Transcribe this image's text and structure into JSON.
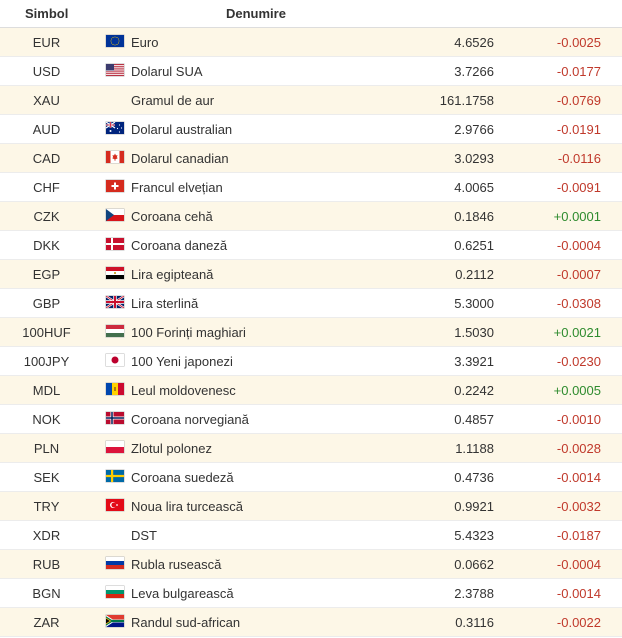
{
  "header": {
    "symbol": "Simbol",
    "name": "Denumire"
  },
  "rows": [
    {
      "symbol": "EUR",
      "flag": "eu-flag-icon",
      "name": "Euro",
      "value": "4.6526",
      "change": "-0.0025",
      "dir": "neg"
    },
    {
      "symbol": "USD",
      "flag": "us-flag-icon",
      "name": "Dolarul SUA",
      "value": "3.7266",
      "change": "-0.0177",
      "dir": "neg"
    },
    {
      "symbol": "XAU",
      "flag": "",
      "name": "Gramul de aur",
      "value": "161.1758",
      "change": "-0.0769",
      "dir": "neg"
    },
    {
      "symbol": "AUD",
      "flag": "au-flag-icon",
      "name": "Dolarul australian",
      "value": "2.9766",
      "change": "-0.0191",
      "dir": "neg"
    },
    {
      "symbol": "CAD",
      "flag": "ca-flag-icon",
      "name": "Dolarul canadian",
      "value": "3.0293",
      "change": "-0.0116",
      "dir": "neg"
    },
    {
      "symbol": "CHF",
      "flag": "ch-flag-icon",
      "name": "Francul elvețian",
      "value": "4.0065",
      "change": "-0.0091",
      "dir": "neg"
    },
    {
      "symbol": "CZK",
      "flag": "cz-flag-icon",
      "name": "Coroana cehă",
      "value": "0.1846",
      "change": "+0.0001",
      "dir": "pos"
    },
    {
      "symbol": "DKK",
      "flag": "dk-flag-icon",
      "name": "Coroana daneză",
      "value": "0.6251",
      "change": "-0.0004",
      "dir": "neg"
    },
    {
      "symbol": "EGP",
      "flag": "eg-flag-icon",
      "name": "Lira egipteană",
      "value": "0.2112",
      "change": "-0.0007",
      "dir": "neg"
    },
    {
      "symbol": "GBP",
      "flag": "gb-flag-icon",
      "name": "Lira sterlină",
      "value": "5.3000",
      "change": "-0.0308",
      "dir": "neg"
    },
    {
      "symbol": "100HUF",
      "flag": "hu-flag-icon",
      "name": "100 Forinți maghiari",
      "value": "1.5030",
      "change": "+0.0021",
      "dir": "pos"
    },
    {
      "symbol": "100JPY",
      "flag": "jp-flag-icon",
      "name": "100 Yeni japonezi",
      "value": "3.3921",
      "change": "-0.0230",
      "dir": "neg"
    },
    {
      "symbol": "MDL",
      "flag": "md-flag-icon",
      "name": "Leul moldovenesc",
      "value": "0.2242",
      "change": "+0.0005",
      "dir": "pos"
    },
    {
      "symbol": "NOK",
      "flag": "no-flag-icon",
      "name": "Coroana norvegiană",
      "value": "0.4857",
      "change": "-0.0010",
      "dir": "neg"
    },
    {
      "symbol": "PLN",
      "flag": "pl-flag-icon",
      "name": "Zlotul polonez",
      "value": "1.1188",
      "change": "-0.0028",
      "dir": "neg"
    },
    {
      "symbol": "SEK",
      "flag": "se-flag-icon",
      "name": "Coroana suedeză",
      "value": "0.4736",
      "change": "-0.0014",
      "dir": "neg"
    },
    {
      "symbol": "TRY",
      "flag": "tr-flag-icon",
      "name": "Noua lira turcească",
      "value": "0.9921",
      "change": "-0.0032",
      "dir": "neg"
    },
    {
      "symbol": "XDR",
      "flag": "",
      "name": "DST",
      "value": "5.4323",
      "change": "-0.0187",
      "dir": "neg"
    },
    {
      "symbol": "RUB",
      "flag": "ru-flag-icon",
      "name": "Rubla rusească",
      "value": "0.0662",
      "change": "-0.0004",
      "dir": "neg"
    },
    {
      "symbol": "BGN",
      "flag": "bg-flag-icon",
      "name": "Leva bulgarească",
      "value": "2.3788",
      "change": "-0.0014",
      "dir": "neg"
    },
    {
      "symbol": "ZAR",
      "flag": "za-flag-icon",
      "name": "Randul sud-african",
      "value": "0.3116",
      "change": "-0.0022",
      "dir": "neg"
    }
  ],
  "colors": {
    "negative": "#c0392b",
    "positive": "#2e8b2e",
    "row_alt": "#fdf7e7"
  }
}
